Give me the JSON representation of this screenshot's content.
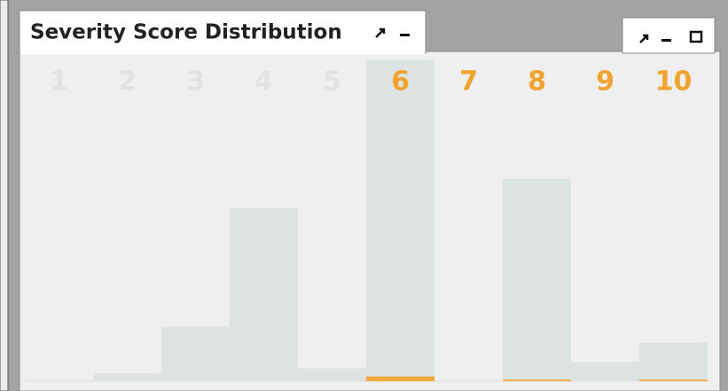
{
  "chart_data": {
    "type": "bar",
    "title": "Severity Score Distribution",
    "categories": [
      "1",
      "2",
      "3",
      "4",
      "5",
      "6",
      "7",
      "8",
      "9",
      "10"
    ],
    "category_colors": [
      "#e2e2e2",
      "#e2e2e2",
      "#e2e2e2",
      "#e2e2e2",
      "#e2e2e2",
      "#f0a32e",
      "#f0a32e",
      "#f0a32e",
      "#f0a32e",
      "#f0a32e"
    ],
    "series": [
      {
        "color": "#dde2e3",
        "values": [
          0,
          2.5,
          17,
          54,
          4,
          100,
          0,
          63,
          6,
          12
        ]
      },
      {
        "color": "#f2a83a",
        "values": [
          0,
          0,
          0,
          0,
          0,
          1.5,
          0,
          0.5,
          0,
          0.5
        ]
      }
    ],
    "ylim": [
      0,
      100
    ]
  }
}
